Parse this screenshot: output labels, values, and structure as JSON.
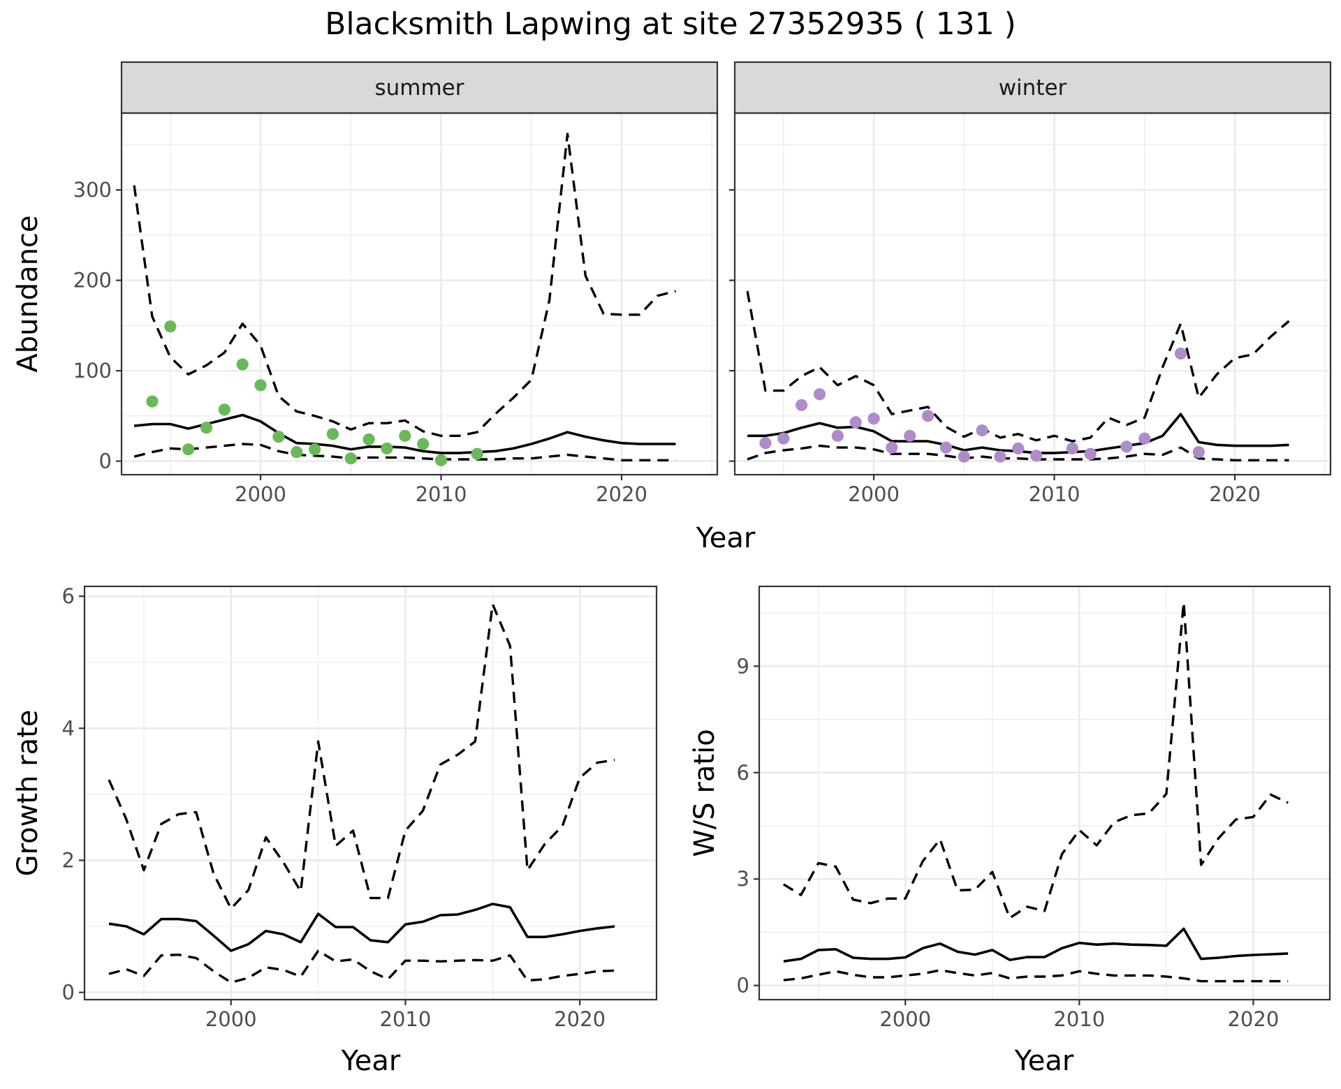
{
  "chart_data": [
    {
      "type": "line",
      "panel": "summer",
      "title": "Blacksmith Lapwing at site 27352935 ( 131 )",
      "xlabel": "Year",
      "ylabel": "Abundance",
      "xlim": [
        1992.3,
        2025.3
      ],
      "ylim": [
        -15,
        385
      ],
      "x_ticks": [
        2000,
        2010,
        2020
      ],
      "y_ticks": [
        0,
        100,
        200,
        300
      ],
      "grid": true,
      "point_color": "#6ab959",
      "x": [
        1993,
        1994,
        1995,
        1996,
        1997,
        1998,
        1999,
        2000,
        2001,
        2002,
        2003,
        2004,
        2005,
        2006,
        2007,
        2008,
        2009,
        2010,
        2011,
        2012,
        2013,
        2014,
        2015,
        2016,
        2017,
        2018,
        2019,
        2020,
        2021,
        2022,
        2023
      ],
      "series": [
        {
          "role": "mean",
          "values": [
            39,
            41,
            41,
            36,
            41,
            46,
            51,
            44,
            31,
            20,
            19,
            17,
            13,
            16,
            16,
            15,
            11,
            9,
            9,
            10,
            11,
            14,
            19,
            25,
            32,
            27,
            23,
            20,
            19,
            19,
            19
          ]
        },
        {
          "role": "upper",
          "values": [
            305,
            160,
            115,
            96,
            106,
            120,
            152,
            128,
            72,
            55,
            50,
            44,
            35,
            42,
            42,
            45,
            33,
            28,
            28,
            32,
            52,
            70,
            90,
            178,
            362,
            205,
            163,
            162,
            162,
            183,
            188
          ]
        },
        {
          "role": "lower",
          "values": [
            5,
            10,
            14,
            13,
            15,
            17,
            19,
            18,
            11,
            7,
            6,
            5,
            3,
            4,
            4,
            4,
            3,
            2,
            2,
            2,
            2,
            3,
            3,
            5,
            7,
            5,
            3,
            1,
            1,
            1,
            1
          ]
        }
      ],
      "points": [
        [
          1994,
          66
        ],
        [
          1995,
          149
        ],
        [
          1996,
          13
        ],
        [
          1997,
          37
        ],
        [
          1998,
          57
        ],
        [
          1999,
          107
        ],
        [
          2000,
          84
        ],
        [
          2001,
          27
        ],
        [
          2002,
          10
        ],
        [
          2003,
          13
        ],
        [
          2004,
          30
        ],
        [
          2005,
          3
        ],
        [
          2006,
          24
        ],
        [
          2007,
          14
        ],
        [
          2008,
          28
        ],
        [
          2009,
          19
        ],
        [
          2010,
          1
        ],
        [
          2012,
          8
        ]
      ]
    },
    {
      "type": "line",
      "panel": "winter",
      "xlabel": "Year",
      "ylabel": "Abundance",
      "xlim": [
        1992.3,
        2025.3
      ],
      "ylim": [
        -15,
        385
      ],
      "x_ticks": [
        2000,
        2010,
        2020
      ],
      "y_ticks": [
        0,
        100,
        200,
        300
      ],
      "grid": true,
      "point_color": "#b08bc9",
      "x": [
        1993,
        1994,
        1995,
        1996,
        1997,
        1998,
        1999,
        2000,
        2001,
        2002,
        2003,
        2004,
        2005,
        2006,
        2007,
        2008,
        2009,
        2010,
        2011,
        2012,
        2013,
        2014,
        2015,
        2016,
        2017,
        2018,
        2019,
        2020,
        2021,
        2022,
        2023
      ],
      "series": [
        {
          "role": "mean",
          "values": [
            28,
            28,
            31,
            37,
            42,
            37,
            38,
            33,
            22,
            22,
            22,
            18,
            12,
            15,
            12,
            11,
            9,
            9,
            10,
            11,
            14,
            17,
            20,
            28,
            52,
            21,
            18,
            17,
            17,
            17,
            18
          ]
        },
        {
          "role": "upper",
          "values": [
            188,
            78,
            78,
            94,
            104,
            84,
            94,
            84,
            52,
            56,
            60,
            38,
            27,
            36,
            26,
            30,
            23,
            28,
            22,
            26,
            48,
            40,
            48,
            104,
            152,
            70,
            96,
            114,
            118,
            138,
            155
          ]
        },
        {
          "role": "lower",
          "values": [
            2,
            9,
            12,
            14,
            17,
            15,
            15,
            13,
            8,
            8,
            8,
            6,
            3,
            5,
            3,
            3,
            2,
            2,
            2,
            2,
            3,
            5,
            8,
            7,
            15,
            3,
            2,
            1,
            1,
            1,
            1
          ]
        }
      ],
      "points": [
        [
          1994,
          20
        ],
        [
          1995,
          25
        ],
        [
          1996,
          62
        ],
        [
          1997,
          74
        ],
        [
          1998,
          28
        ],
        [
          1999,
          43
        ],
        [
          2000,
          47
        ],
        [
          2001,
          15
        ],
        [
          2002,
          28
        ],
        [
          2003,
          50
        ],
        [
          2004,
          15
        ],
        [
          2005,
          5
        ],
        [
          2006,
          34
        ],
        [
          2007,
          5
        ],
        [
          2008,
          14
        ],
        [
          2009,
          6
        ],
        [
          2011,
          14
        ],
        [
          2012,
          8
        ],
        [
          2014,
          16
        ],
        [
          2015,
          25
        ],
        [
          2017,
          119
        ],
        [
          2018,
          10
        ]
      ]
    },
    {
      "type": "line",
      "panel": "growth",
      "xlabel": "Year",
      "ylabel": "Growth rate",
      "xlim": [
        1991.6,
        2024.4
      ],
      "ylim": [
        -0.11,
        6.15
      ],
      "x_ticks": [
        2000,
        2010,
        2020
      ],
      "y_ticks": [
        0,
        2,
        4,
        6
      ],
      "grid": true,
      "x": [
        1993,
        1994,
        1995,
        1996,
        1997,
        1998,
        1999,
        2000,
        2001,
        2002,
        2003,
        2004,
        2005,
        2006,
        2007,
        2008,
        2009,
        2010,
        2011,
        2012,
        2013,
        2014,
        2015,
        2016,
        2017,
        2018,
        2019,
        2020,
        2021,
        2022
      ],
      "series": [
        {
          "role": "mean",
          "values": [
            1.04,
            1.0,
            0.88,
            1.11,
            1.11,
            1.08,
            0.86,
            0.63,
            0.73,
            0.93,
            0.88,
            0.76,
            1.19,
            0.99,
            0.99,
            0.79,
            0.76,
            1.03,
            1.07,
            1.17,
            1.18,
            1.25,
            1.34,
            1.29,
            0.84,
            0.84,
            0.88,
            0.93,
            0.97,
            1.0
          ]
        },
        {
          "role": "upper",
          "values": [
            3.22,
            2.62,
            1.85,
            2.55,
            2.7,
            2.73,
            1.8,
            1.27,
            1.55,
            2.35,
            1.97,
            1.53,
            3.8,
            2.22,
            2.45,
            1.43,
            1.43,
            2.45,
            2.75,
            3.45,
            3.6,
            3.8,
            5.88,
            5.25,
            1.85,
            2.25,
            2.52,
            3.25,
            3.48,
            3.52
          ]
        },
        {
          "role": "lower",
          "values": [
            0.28,
            0.35,
            0.25,
            0.56,
            0.57,
            0.52,
            0.32,
            0.15,
            0.22,
            0.38,
            0.34,
            0.24,
            0.63,
            0.47,
            0.5,
            0.32,
            0.2,
            0.48,
            0.48,
            0.47,
            0.48,
            0.49,
            0.48,
            0.56,
            0.18,
            0.2,
            0.25,
            0.28,
            0.32,
            0.33
          ]
        }
      ]
    },
    {
      "type": "line",
      "panel": "ratio",
      "xlabel": "Year",
      "ylabel": "W/S ratio",
      "xlim": [
        1991.6,
        2024.4
      ],
      "ylim": [
        -0.4,
        11.25
      ],
      "x_ticks": [
        2000,
        2010,
        2020
      ],
      "y_ticks": [
        0,
        3,
        6,
        9
      ],
      "grid": true,
      "x": [
        1993,
        1994,
        1995,
        1996,
        1997,
        1998,
        1999,
        2000,
        2001,
        2002,
        2003,
        2004,
        2005,
        2006,
        2007,
        2008,
        2009,
        2010,
        2011,
        2012,
        2013,
        2014,
        2015,
        2016,
        2017,
        2018,
        2019,
        2020,
        2021,
        2022
      ],
      "series": [
        {
          "role": "mean",
          "values": [
            0.68,
            0.75,
            1.0,
            1.02,
            0.78,
            0.75,
            0.75,
            0.79,
            1.05,
            1.18,
            0.95,
            0.87,
            1.0,
            0.72,
            0.8,
            0.8,
            1.05,
            1.2,
            1.15,
            1.18,
            1.15,
            1.14,
            1.12,
            1.6,
            0.75,
            0.78,
            0.83,
            0.86,
            0.88,
            0.9
          ]
        },
        {
          "role": "upper",
          "values": [
            2.85,
            2.55,
            3.45,
            3.35,
            2.42,
            2.32,
            2.45,
            2.45,
            3.5,
            4.12,
            2.68,
            2.7,
            3.2,
            1.9,
            2.22,
            2.1,
            3.7,
            4.38,
            3.95,
            4.6,
            4.8,
            4.85,
            5.4,
            10.8,
            3.4,
            4.15,
            4.68,
            4.75,
            5.38,
            5.15
          ]
        },
        {
          "role": "lower",
          "values": [
            0.15,
            0.2,
            0.3,
            0.4,
            0.3,
            0.23,
            0.23,
            0.28,
            0.33,
            0.43,
            0.35,
            0.28,
            0.35,
            0.2,
            0.25,
            0.25,
            0.28,
            0.4,
            0.33,
            0.28,
            0.28,
            0.28,
            0.25,
            0.2,
            0.12,
            0.12,
            0.12,
            0.12,
            0.12,
            0.12
          ]
        }
      ]
    }
  ],
  "labels": {
    "main_title": "Blacksmith Lapwing at site 27352935 ( 131 )",
    "strip_summer": "summer",
    "strip_winter": "winter",
    "top_ylabel": "Abundance",
    "top_xlabel": "Year",
    "growth_ylabel": "Growth rate",
    "growth_xlabel": "Year",
    "ratio_ylabel": "W/S ratio",
    "ratio_xlabel": "Year"
  }
}
